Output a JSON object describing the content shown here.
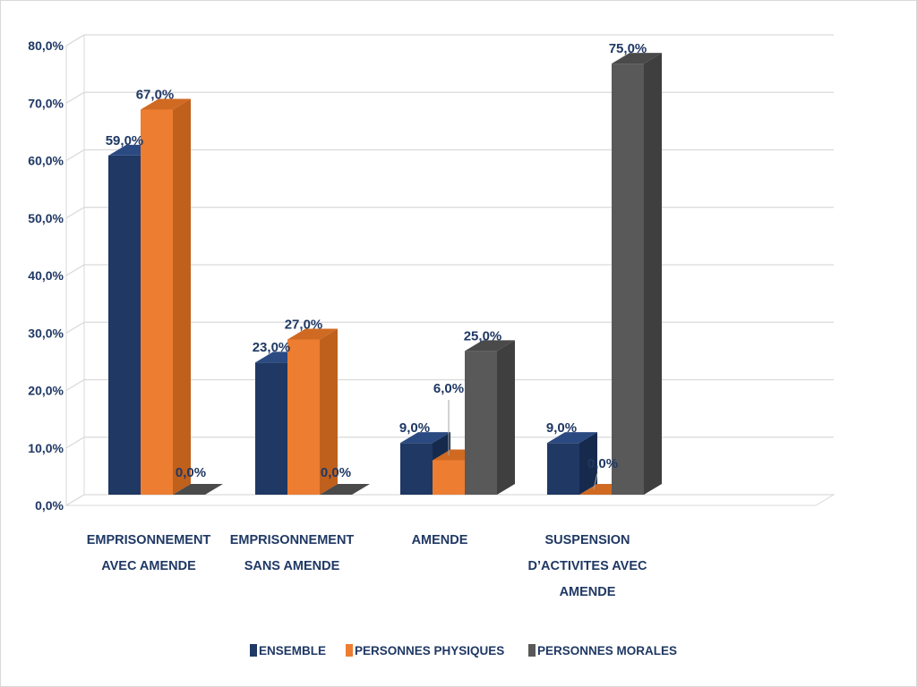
{
  "chart_data": {
    "type": "bar",
    "categories": [
      [
        "EMPRISONNEMENT",
        "AVEC AMENDE"
      ],
      [
        "EMPRISONNEMENT",
        "SANS AMENDE"
      ],
      [
        "AMENDE"
      ],
      [
        "SUSPENSION",
        "D’ACTIVITES AVEC",
        "AMENDE"
      ]
    ],
    "series": [
      {
        "name": "ENSEMBLE",
        "values": [
          59.0,
          23.0,
          9.0,
          9.0
        ],
        "labels": [
          "59,0%",
          "23,0%",
          "9,0%",
          "9,0%"
        ]
      },
      {
        "name": "PERSONNES PHYSIQUES",
        "values": [
          67.0,
          27.0,
          6.0,
          0.0
        ],
        "labels": [
          "67,0%",
          "27,0%",
          "6,0%",
          "0,0%"
        ]
      },
      {
        "name": "PERSONNES MORALES",
        "values": [
          0.0,
          0.0,
          25.0,
          75.0
        ],
        "labels": [
          "0,0%",
          "0,0%",
          "25,0%",
          "75,0%"
        ]
      }
    ],
    "ylim": [
      0,
      80
    ],
    "yticks": [
      "0,0%",
      "10,0%",
      "20,0%",
      "30,0%",
      "40,0%",
      "50,0%",
      "60,0%",
      "70,0%",
      "80,0%"
    ],
    "grid": true,
    "legend_position": "bottom",
    "style": "3d-clustered-column"
  },
  "colors": {
    "ENSEMBLE": {
      "front": "#1f3864",
      "side": "#162a4d",
      "top": "#2b4a82"
    },
    "PERSONNES PHYSIQUES": {
      "front": "#ed7d31",
      "side": "#c0601d",
      "top": "#d06a22"
    },
    "PERSONNES MORALES": {
      "front": "#595959",
      "side": "#3f3f3f",
      "top": "#4a4a4a"
    },
    "grid": "#d9d9d9",
    "text": "#1f3864"
  }
}
